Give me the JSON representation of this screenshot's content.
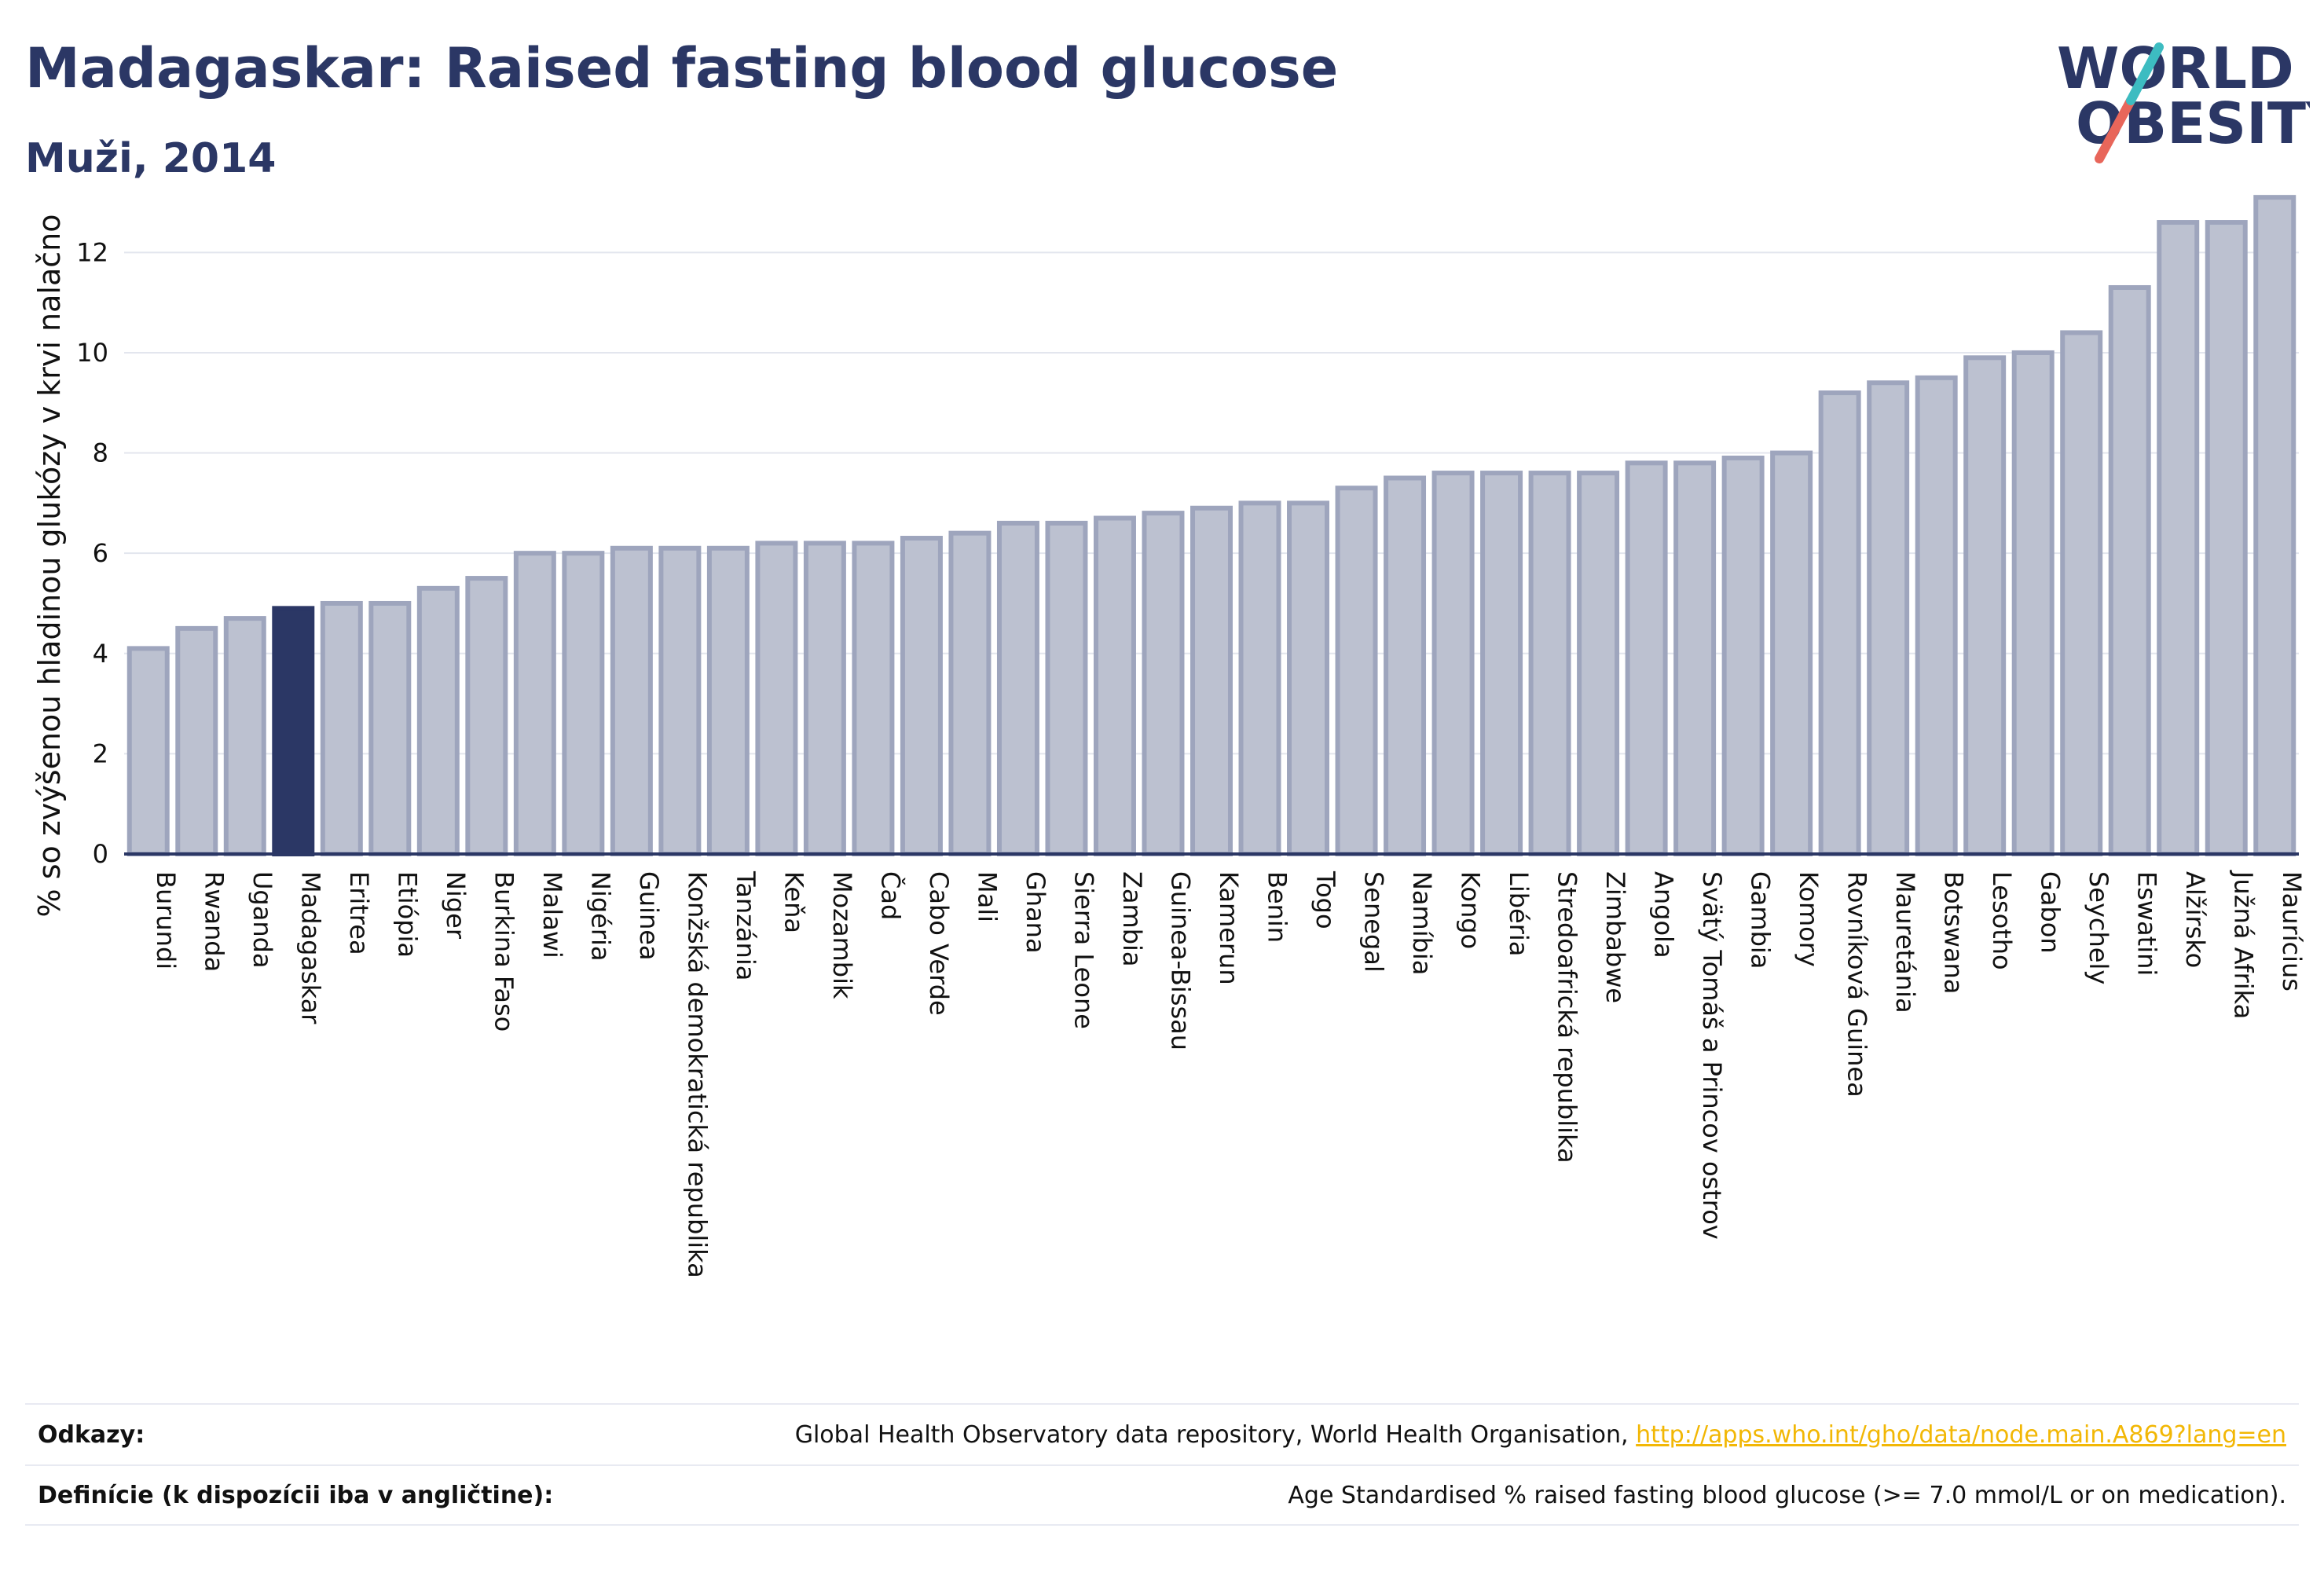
{
  "header": {
    "title": "Madagaskar: Raised fasting blood glucose",
    "subtitle": "Muži, 2014"
  },
  "logo": {
    "line1": "WORLD",
    "line2": "OBESITY"
  },
  "colors": {
    "highlight": "#2b3765",
    "bar_fill": "#bcc1d0",
    "bar_stroke": "#9ea5bd",
    "logo_teal": "#3dbcc1",
    "logo_coral": "#e8665a"
  },
  "chart_data": {
    "type": "bar",
    "title": "Madagaskar: Raised fasting blood glucose",
    "subtitle": "Muži, 2014",
    "ylabel": "% so zvýšenou hladinou glukózy v krvi nalačno",
    "xlabel": "",
    "ylim": [
      0,
      13.4
    ],
    "yticks": [
      0,
      2,
      4,
      6,
      8,
      10,
      12
    ],
    "grid": true,
    "highlight": "Madagaskar",
    "categories": [
      "Burundi",
      "Rwanda",
      "Uganda",
      "Madagaskar",
      "Eritrea",
      "Etiópia",
      "Niger",
      "Burkina Faso",
      "Malawi",
      "Nigéria",
      "Guinea",
      "Konžská demokratická republika",
      "Tanzánia",
      "Keňa",
      "Mozambik",
      "Čad",
      "Cabo Verde",
      "Mali",
      "Ghana",
      "Sierra Leone",
      "Zambia",
      "Guinea-Bissau",
      "Kamerun",
      "Benin",
      "Togo",
      "Senegal",
      "Namíbia",
      "Kongo",
      "Libéria",
      "Stredoafrická republika",
      "Zimbabwe",
      "Angola",
      "Svätý Tomáš a Princov ostrov",
      "Gambia",
      "Komory",
      "Rovníková Guinea",
      "Mauretánia",
      "Botswana",
      "Lesotho",
      "Gabon",
      "Seychely",
      "Eswatini",
      "Alžírsko",
      "Južná Afrika",
      "Maurícius"
    ],
    "values": [
      4.1,
      4.5,
      4.7,
      4.9,
      5.0,
      5.0,
      5.3,
      5.5,
      6.0,
      6.0,
      6.1,
      6.1,
      6.1,
      6.2,
      6.2,
      6.2,
      6.3,
      6.4,
      6.6,
      6.6,
      6.7,
      6.8,
      6.9,
      7.0,
      7.0,
      7.3,
      7.5,
      7.6,
      7.6,
      7.6,
      7.6,
      7.8,
      7.8,
      7.9,
      8.0,
      9.2,
      9.4,
      9.5,
      9.9,
      10.0,
      10.4,
      11.3,
      12.6,
      12.6,
      13.1
    ]
  },
  "footer": {
    "sources_label": "Odkazy:",
    "sources_text": "Global Health Observatory data repository, World Health Organisation,",
    "sources_link": "http://apps.who.int/gho/data/node.main.A869?lang=en",
    "definitions_label": "Definície (k dispozícii iba v angličtine):",
    "definitions_text": "Age Standardised % raised fasting blood glucose (>= 7.0 mmol/L or on medication)."
  }
}
